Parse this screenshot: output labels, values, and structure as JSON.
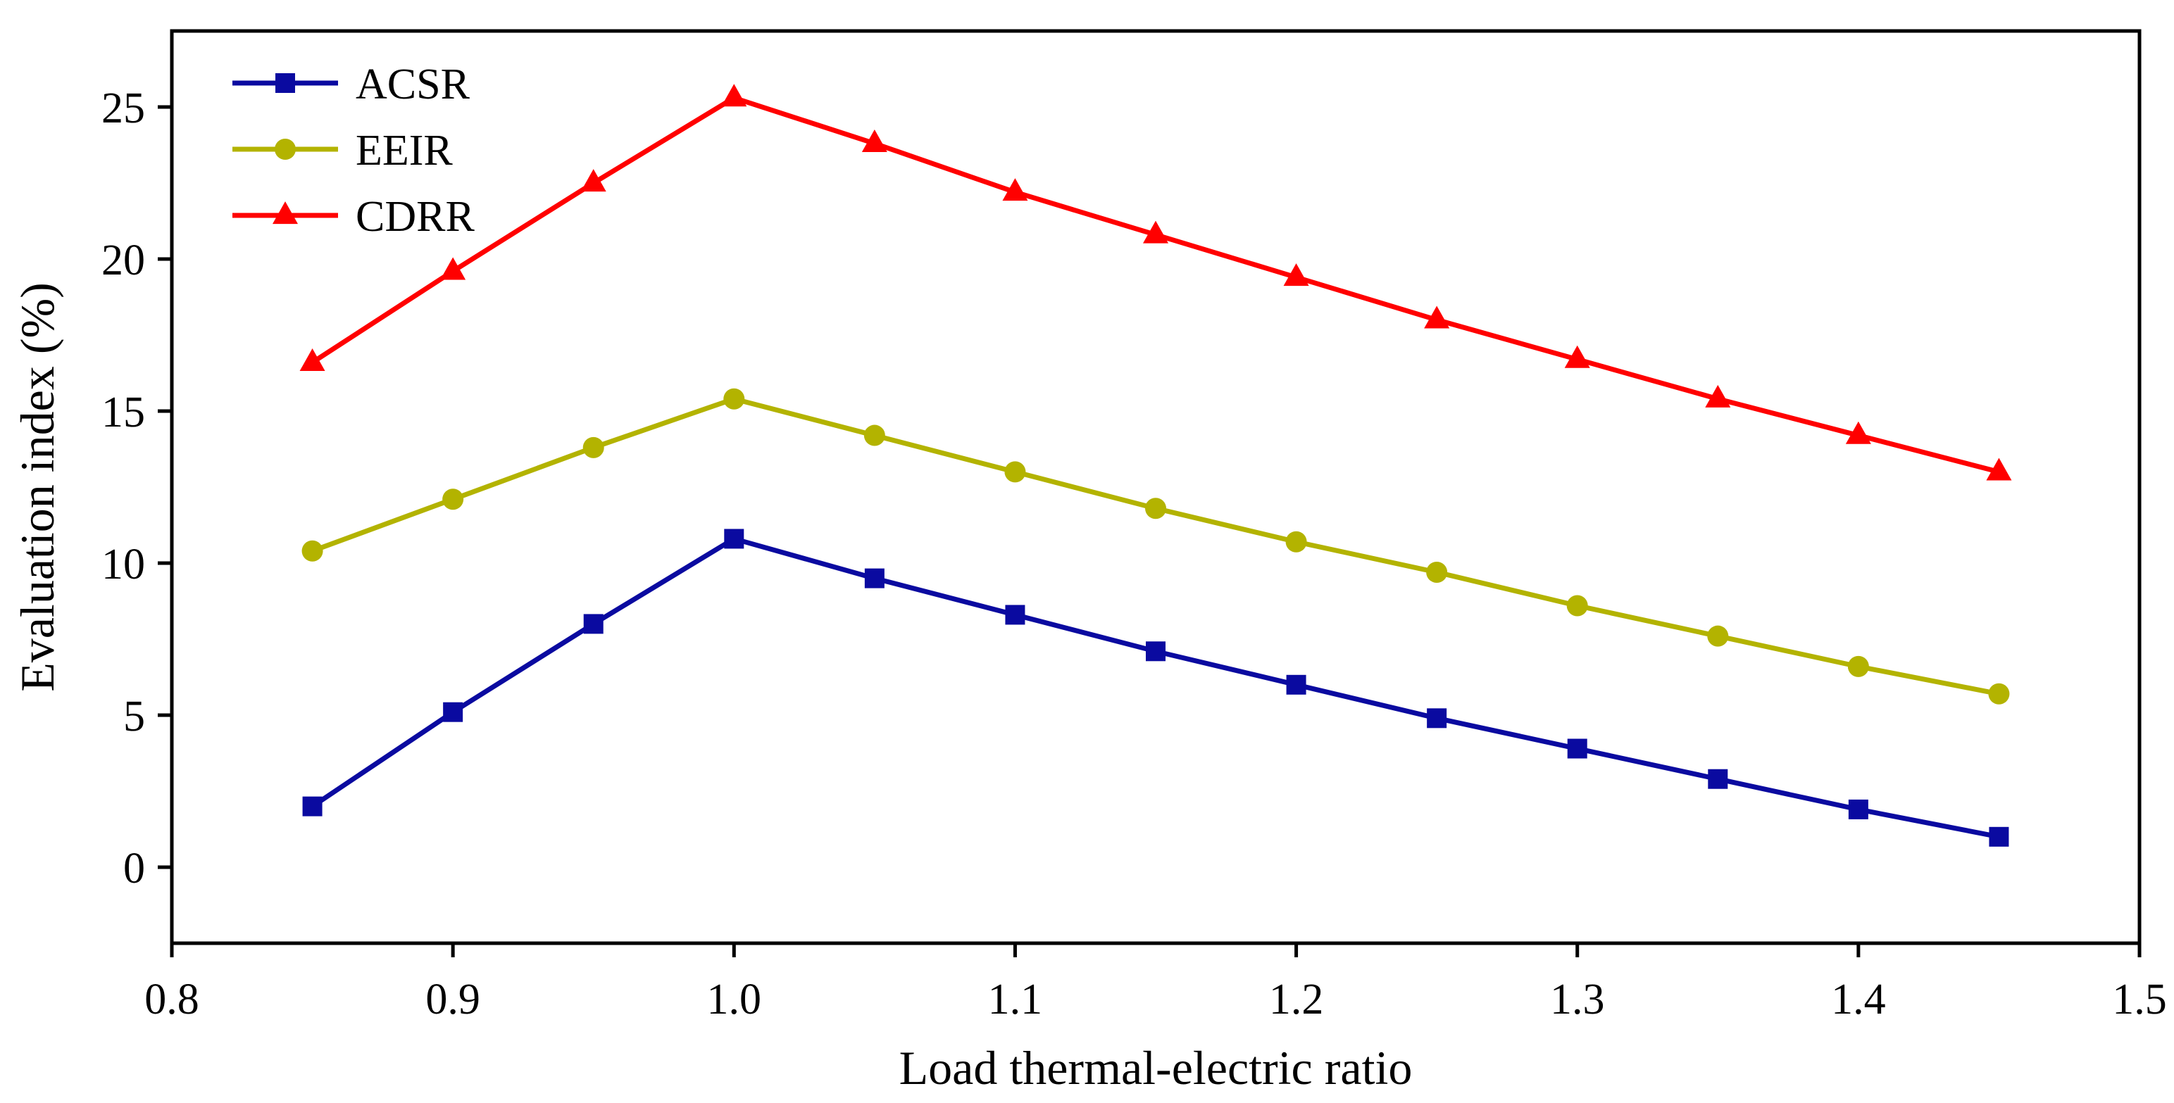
{
  "chart_data": {
    "type": "line",
    "title": "",
    "xlabel": "Load thermal-electric ratio",
    "ylabel": "Evaluation index (%)",
    "xlim": [
      0.8,
      1.5
    ],
    "ylim": [
      -2.5,
      27.5
    ],
    "xticks": [
      "0.8",
      "0.9",
      "1.0",
      "1.1",
      "1.2",
      "1.3",
      "1.4",
      "1.5"
    ],
    "yticks": [
      "0",
      "5",
      "10",
      "15",
      "20",
      "25"
    ],
    "grid": false,
    "legend_position": "top-left",
    "x": [
      0.85,
      0.9,
      0.95,
      1.0,
      1.05,
      1.1,
      1.15,
      1.2,
      1.25,
      1.3,
      1.35,
      1.4,
      1.45
    ],
    "series": [
      {
        "name": "ACSR",
        "color": "#0a0aa0",
        "marker": "square",
        "values": [
          2.0,
          5.1,
          8.0,
          10.8,
          9.5,
          8.3,
          7.1,
          6.0,
          4.9,
          3.9,
          2.9,
          1.9,
          1.0
        ]
      },
      {
        "name": "EEIR",
        "color": "#b3b300",
        "marker": "circle",
        "values": [
          10.4,
          12.1,
          13.8,
          15.4,
          14.2,
          13.0,
          11.8,
          10.7,
          9.7,
          8.6,
          7.6,
          6.6,
          5.7
        ]
      },
      {
        "name": "CDRR",
        "color": "#ff0000",
        "marker": "triangle",
        "values": [
          16.6,
          19.6,
          22.5,
          25.3,
          23.8,
          22.2,
          20.8,
          19.4,
          18.0,
          16.7,
          15.4,
          14.2,
          13.0
        ]
      }
    ]
  }
}
